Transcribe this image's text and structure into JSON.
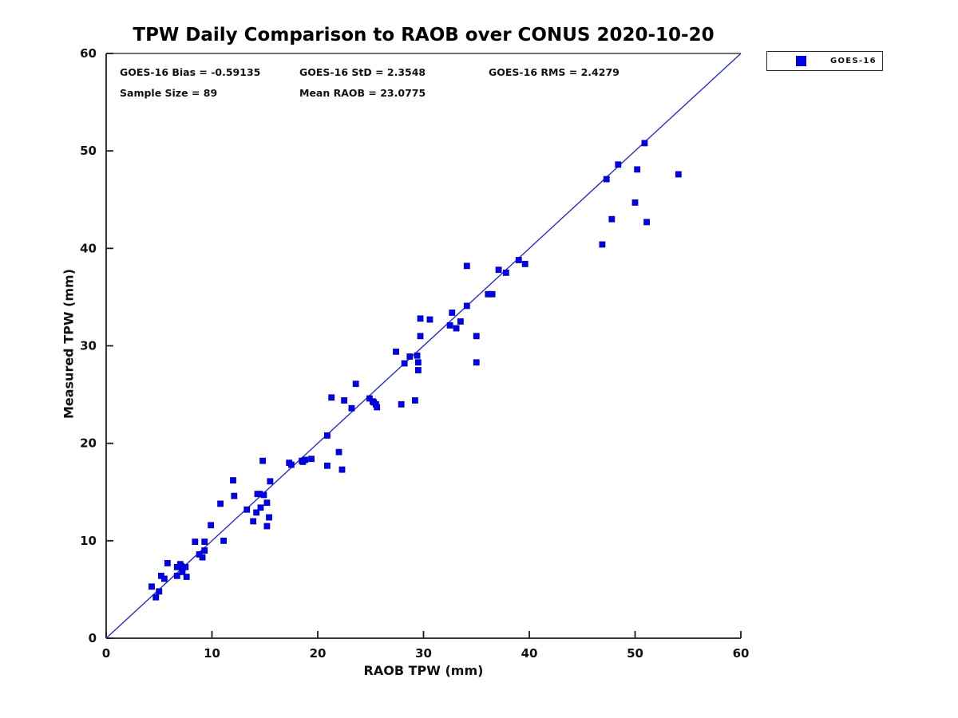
{
  "chart_data": {
    "type": "scatter",
    "title": "TPW Daily Comparison to RAOB over CONUS 2020-10-20",
    "xlabel": "RAOB TPW (mm)",
    "ylabel": "Measured TPW (mm)",
    "xlim": [
      0,
      60
    ],
    "ylim": [
      0,
      60
    ],
    "xticks": [
      0,
      10,
      20,
      30,
      40,
      50,
      60
    ],
    "yticks": [
      0,
      10,
      20,
      30,
      40,
      50,
      60
    ],
    "grid": false,
    "stats": {
      "bias": "GOES-16 Bias = -0.59135",
      "std": "GOES-16 StD = 2.3548",
      "rms": "GOES-16 RMS = 2.4279",
      "sample": "Sample Size = 89",
      "mean": "Mean RAOB = 23.0775"
    },
    "legend": {
      "position": "top-right-outside",
      "entries": [
        {
          "label": "GOES-16",
          "marker": "square",
          "color": "#0000ee"
        }
      ]
    },
    "reference_line": {
      "type": "identity",
      "from": [
        0,
        0
      ],
      "to": [
        60,
        60
      ],
      "color": "#2b2bcc"
    },
    "colors": {
      "marker_fill": "#0000ee",
      "marker_edge": "#0000bb",
      "line": "#2b2bcc",
      "axis": "#1c1c1c",
      "text": "#111111"
    },
    "series": [
      {
        "name": "GOES-16",
        "marker": "square",
        "color": "#0000ee",
        "points": [
          [
            4.3,
            5.3
          ],
          [
            4.7,
            4.2
          ],
          [
            5.0,
            4.8
          ],
          [
            5.2,
            6.4
          ],
          [
            5.5,
            6.1
          ],
          [
            5.8,
            7.7
          ],
          [
            6.7,
            6.4
          ],
          [
            6.7,
            7.3
          ],
          [
            7.0,
            7.6
          ],
          [
            7.1,
            7.4
          ],
          [
            7.2,
            7.1
          ],
          [
            7.2,
            6.8
          ],
          [
            7.5,
            7.3
          ],
          [
            7.6,
            6.3
          ],
          [
            8.4,
            9.9
          ],
          [
            8.8,
            8.6
          ],
          [
            9.1,
            8.3
          ],
          [
            9.3,
            9.9
          ],
          [
            9.3,
            9.0
          ],
          [
            9.9,
            11.6
          ],
          [
            10.8,
            13.8
          ],
          [
            11.1,
            10.0
          ],
          [
            12.0,
            16.2
          ],
          [
            12.1,
            14.6
          ],
          [
            13.3,
            13.2
          ],
          [
            13.9,
            12.0
          ],
          [
            14.2,
            12.9
          ],
          [
            14.3,
            14.8
          ],
          [
            14.5,
            14.8
          ],
          [
            14.6,
            13.4
          ],
          [
            14.9,
            14.7
          ],
          [
            15.2,
            13.9
          ],
          [
            15.2,
            11.5
          ],
          [
            15.4,
            12.4
          ],
          [
            15.5,
            16.1
          ],
          [
            14.8,
            18.2
          ],
          [
            17.3,
            18.0
          ],
          [
            17.5,
            17.8
          ],
          [
            18.5,
            18.2
          ],
          [
            18.6,
            18.1
          ],
          [
            18.8,
            18.3
          ],
          [
            19.4,
            18.4
          ],
          [
            20.9,
            20.8
          ],
          [
            20.9,
            17.7
          ],
          [
            22.0,
            19.1
          ],
          [
            22.3,
            17.3
          ],
          [
            21.3,
            24.7
          ],
          [
            22.5,
            24.4
          ],
          [
            23.2,
            23.6
          ],
          [
            23.6,
            26.1
          ],
          [
            24.9,
            24.6
          ],
          [
            25.2,
            24.3
          ],
          [
            25.3,
            24.2
          ],
          [
            25.5,
            24.0
          ],
          [
            25.6,
            23.7
          ],
          [
            27.9,
            24.0
          ],
          [
            29.2,
            24.4
          ],
          [
            27.4,
            29.4
          ],
          [
            28.2,
            28.2
          ],
          [
            28.7,
            28.9
          ],
          [
            29.4,
            29.0
          ],
          [
            29.5,
            28.3
          ],
          [
            29.5,
            27.5
          ],
          [
            29.7,
            31.0
          ],
          [
            29.7,
            32.8
          ],
          [
            30.6,
            32.7
          ],
          [
            32.5,
            32.1
          ],
          [
            32.7,
            33.4
          ],
          [
            33.1,
            31.8
          ],
          [
            33.5,
            32.5
          ],
          [
            34.1,
            34.1
          ],
          [
            34.1,
            38.2
          ],
          [
            35.0,
            31.0
          ],
          [
            35.0,
            28.3
          ],
          [
            36.1,
            35.3
          ],
          [
            36.5,
            35.3
          ],
          [
            37.1,
            37.8
          ],
          [
            37.8,
            37.5
          ],
          [
            39.0,
            38.8
          ],
          [
            39.6,
            38.4
          ],
          [
            46.9,
            40.4
          ],
          [
            47.3,
            47.1
          ],
          [
            47.8,
            43.0
          ],
          [
            48.4,
            48.6
          ],
          [
            50.0,
            44.7
          ],
          [
            50.2,
            48.1
          ],
          [
            50.9,
            50.8
          ],
          [
            51.1,
            42.7
          ],
          [
            54.1,
            47.6
          ]
        ]
      }
    ]
  }
}
